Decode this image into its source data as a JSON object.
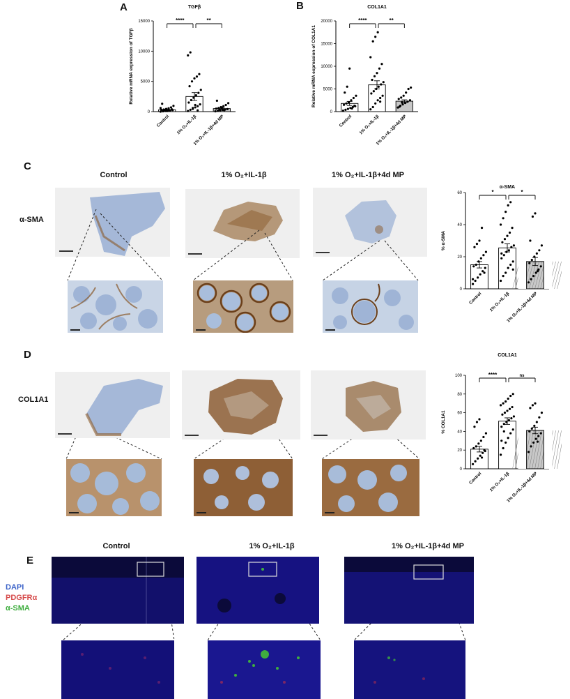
{
  "panels": {
    "a": {
      "letter": "A"
    },
    "b": {
      "letter": "B"
    },
    "c": {
      "letter": "C",
      "row_label": "α-SMA"
    },
    "d": {
      "letter": "D",
      "row_label": "COL1A1"
    },
    "e": {
      "letter": "E"
    }
  },
  "conditions": [
    "Control",
    "1% O₂+IL-1β",
    "1% O₂+IL-1β+4d MP"
  ],
  "legend_e": {
    "dapi": "DAPI",
    "pdgfra": "PDGFRα",
    "asma": "α-SMA"
  },
  "colors": {
    "dapi": "#3b62c8",
    "pdgfra": "#d64a4a",
    "asma": "#3fae3f",
    "dab": "#8a5a2b",
    "hematoxylin": "#9fb4d6"
  },
  "chart_data": [
    {
      "id": "chart-a",
      "type": "bar",
      "title": "TGFβ",
      "ylabel": "Relative mRNA expression of TGFβ",
      "categories": [
        "Control",
        "1% O₂+IL-1β",
        "1% O₂+IL-1β+4d MP"
      ],
      "values": [
        300,
        2500,
        500
      ],
      "errors": [
        80,
        650,
        110
      ],
      "ylim": [
        0,
        15000
      ],
      "yticks": [
        0,
        5000,
        10000,
        15000
      ],
      "bar_fills": [
        "#ffffff",
        "#ffffff",
        "#c8c8c8"
      ],
      "points": [
        [
          0,
          50,
          100,
          150,
          200,
          250,
          300,
          350,
          450,
          550,
          700,
          950,
          1300,
          120,
          80,
          220,
          380,
          600,
          170,
          260
        ],
        [
          100,
          300,
          450,
          700,
          900,
          1200,
          1500,
          1900,
          2300,
          2700,
          3100,
          3600,
          4200,
          5000,
          5500,
          5800,
          6200,
          9300,
          9800,
          600,
          1100,
          200
        ],
        [
          50,
          120,
          200,
          280,
          350,
          420,
          500,
          600,
          750,
          900,
          1100,
          1400,
          1800,
          300,
          650,
          240
        ]
      ],
      "brackets": [
        {
          "from": 0,
          "to": 1,
          "label": "****"
        },
        {
          "from": 1,
          "to": 2,
          "label": "**"
        }
      ]
    },
    {
      "id": "chart-b",
      "type": "bar",
      "title": "COL1A1",
      "ylabel": "Relative mRNA expression of COL1A1",
      "categories": [
        "Control",
        "1% O₂+IL-1β",
        "1% O₂+IL-1β+4d MP"
      ],
      "values": [
        1800,
        5900,
        2300
      ],
      "errors": [
        450,
        900,
        300
      ],
      "ylim": [
        0,
        20000
      ],
      "yticks": [
        0,
        5000,
        10000,
        15000,
        20000
      ],
      "bar_fills": [
        "#ffffff",
        "#ffffff",
        "#c8c8c8"
      ],
      "points": [
        [
          200,
          400,
          600,
          800,
          1000,
          1200,
          1500,
          1800,
          2000,
          2500,
          3000,
          3500,
          4200,
          5500,
          9500,
          700,
          1300
        ],
        [
          500,
          1000,
          1800,
          2500,
          3000,
          3500,
          4000,
          4500,
          5000,
          5500,
          6000,
          6500,
          7000,
          7800,
          8500,
          9500,
          10500,
          12000,
          15500,
          16500,
          17500,
          2200
        ],
        [
          900,
          1300,
          1600,
          1900,
          2200,
          2500,
          2800,
          3100,
          3500,
          4200,
          5000,
          5300,
          1100,
          2000
        ]
      ],
      "brackets": [
        {
          "from": 0,
          "to": 1,
          "label": "****"
        },
        {
          "from": 1,
          "to": 2,
          "label": "**"
        }
      ]
    },
    {
      "id": "chart-c",
      "type": "bar",
      "title": "α-SMA",
      "ylabel": "% α-SMA",
      "categories": [
        "Control",
        "1% O₂+IL-1β",
        "1% O₂+IL-1β+4d MP"
      ],
      "values": [
        15,
        25.5,
        17
      ],
      "errors": [
        2,
        2.5,
        2.5
      ],
      "ylim": [
        0,
        60
      ],
      "yticks": [
        0,
        20,
        40,
        60
      ],
      "bar_fills": [
        "#ffffff",
        "#ffffff",
        "#c8c8c8"
      ],
      "points": [
        [
          3,
          5,
          7,
          9,
          11,
          13,
          14,
          15,
          17,
          19,
          21,
          23,
          26,
          28,
          30,
          38,
          10,
          6
        ],
        [
          5,
          8,
          10,
          13,
          15,
          17,
          19,
          21,
          23,
          24,
          26,
          27,
          29,
          31,
          33,
          35,
          38,
          40,
          44,
          48,
          52,
          54,
          12,
          22
        ],
        [
          4,
          6,
          8,
          10,
          12,
          14,
          16,
          18,
          20,
          22,
          24,
          27,
          30,
          45,
          47,
          11
        ]
      ],
      "brackets": [
        {
          "from": 0,
          "to": 1,
          "label": "*"
        },
        {
          "from": 1,
          "to": 2,
          "label": "*"
        }
      ]
    },
    {
      "id": "chart-d",
      "type": "bar",
      "title": "COL1A1",
      "ylabel": "% COL1A1",
      "categories": [
        "Control",
        "1% O₂+IL-1β",
        "1% O₂+IL-1β+4d MP"
      ],
      "values": [
        21,
        51,
        41
      ],
      "errors": [
        3,
        3.5,
        3.5
      ],
      "ylim": [
        0,
        100
      ],
      "yticks": [
        0,
        20,
        40,
        60,
        80,
        100
      ],
      "bar_fills": [
        "#ffffff",
        "#ffffff",
        "#c8c8c8"
      ],
      "points": [
        [
          5,
          8,
          11,
          14,
          17,
          19,
          22,
          24,
          27,
          30,
          34,
          38,
          45,
          50,
          53,
          12,
          20
        ],
        [
          15,
          22,
          28,
          33,
          38,
          42,
          45,
          48,
          50,
          52,
          54,
          56,
          58,
          60,
          62,
          64,
          66,
          68,
          70,
          72,
          75,
          78,
          80,
          30,
          40
        ],
        [
          18,
          24,
          28,
          32,
          35,
          38,
          40,
          43,
          46,
          50,
          55,
          60,
          65,
          68,
          70,
          29
        ]
      ],
      "brackets": [
        {
          "from": 0,
          "to": 1,
          "label": "****"
        },
        {
          "from": 1,
          "to": 2,
          "label": "ns"
        }
      ]
    }
  ]
}
